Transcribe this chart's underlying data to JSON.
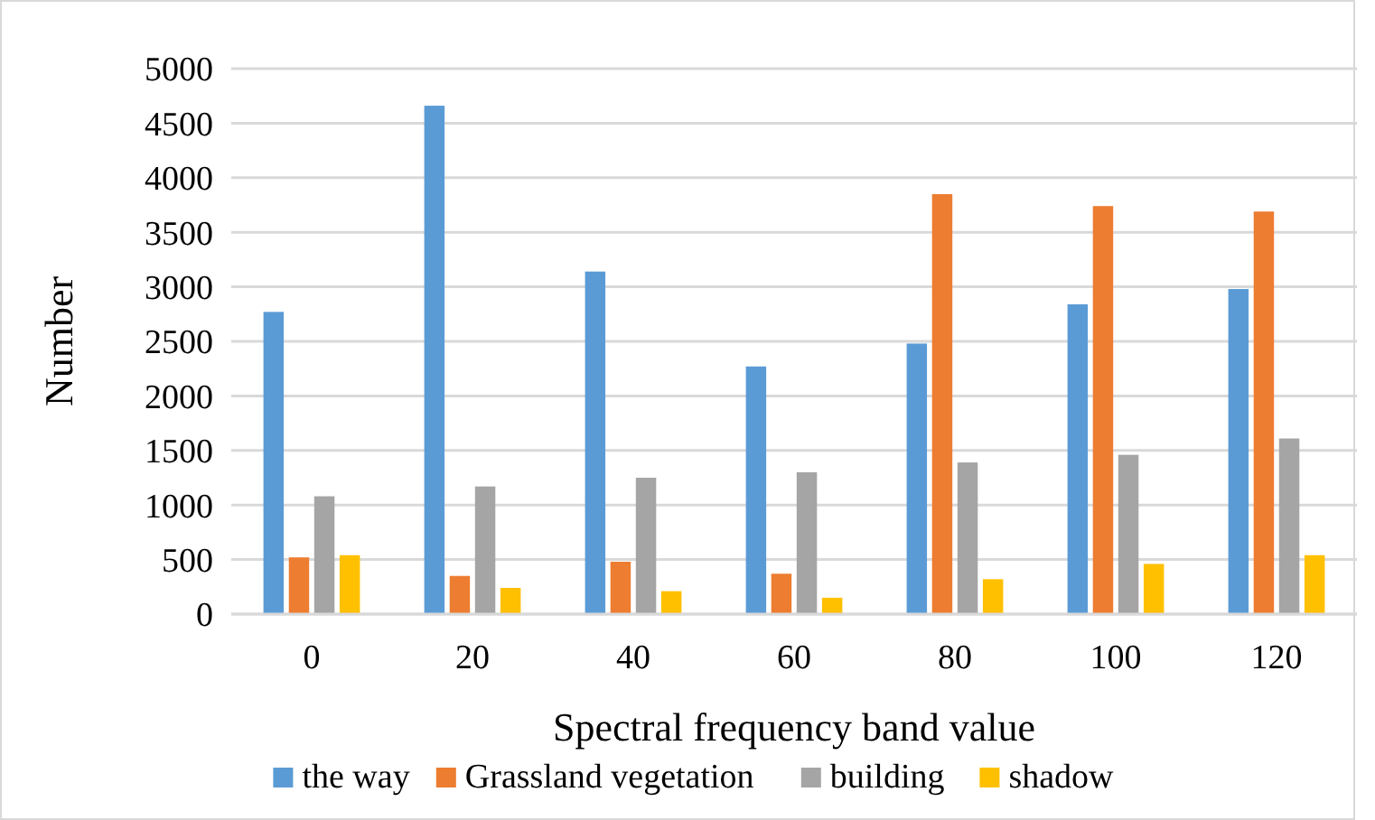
{
  "chart_data": {
    "type": "bar",
    "xlabel": "Spectral frequency band value",
    "ylabel": "Number",
    "categories": [
      "0",
      "20",
      "40",
      "60",
      "80",
      "100",
      "120"
    ],
    "series": [
      {
        "name": "the way",
        "color": "#5b9bd5",
        "values": [
          2770,
          4660,
          3140,
          2270,
          2480,
          2840,
          2980
        ]
      },
      {
        "name": "Grassland vegetation",
        "color": "#ed7d31",
        "values": [
          520,
          350,
          480,
          370,
          3850,
          3740,
          3690
        ]
      },
      {
        "name": "building",
        "color": "#a5a5a5",
        "values": [
          1080,
          1170,
          1250,
          1300,
          1390,
          1460,
          1610
        ]
      },
      {
        "name": "shadow",
        "color": "#ffc000",
        "values": [
          540,
          240,
          210,
          150,
          320,
          460,
          540
        ]
      }
    ],
    "ylim": [
      0,
      5000
    ],
    "yticks": [
      0,
      500,
      1000,
      1500,
      2000,
      2500,
      3000,
      3500,
      4000,
      4500,
      5000
    ],
    "grid": "y",
    "legend": "bottom"
  }
}
